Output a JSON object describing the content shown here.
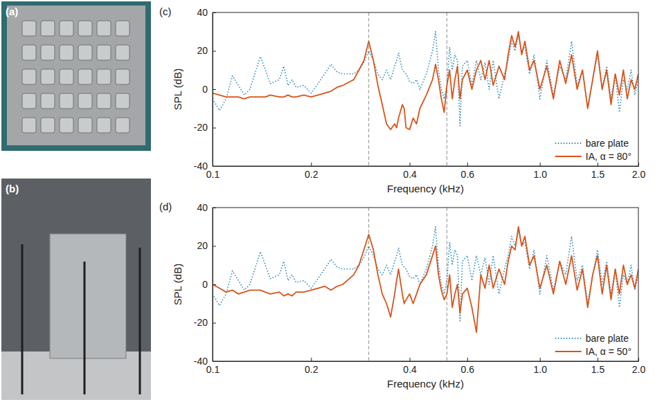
{
  "photos": [
    {
      "label": "(a)"
    },
    {
      "label": "(b)"
    }
  ],
  "chart_data": [
    {
      "type": "line",
      "panel_label": "(c)",
      "x_label": "Frequency (kHz)",
      "y_label": "SPL (dB)",
      "log": "x",
      "grid": false,
      "legend": "lower right",
      "xlim": [
        0.1,
        2.0
      ],
      "ylim": [
        -40,
        40
      ],
      "xticks": [
        0.1,
        0.2,
        0.4,
        0.6,
        {
          "value": 1,
          "label": "1.0"
        },
        1.5,
        {
          "value": 2,
          "label": "2.0"
        }
      ],
      "yticks": [
        -40,
        -20,
        0,
        20,
        40
      ],
      "reference_lines": [
        0.3,
        0.52
      ],
      "x": [
        0.1,
        0.105,
        0.11,
        0.115,
        0.12,
        0.125,
        0.13,
        0.14,
        0.145,
        0.15,
        0.16,
        0.165,
        0.17,
        0.175,
        0.18,
        0.19,
        0.2,
        0.21,
        0.22,
        0.23,
        0.24,
        0.25,
        0.27,
        0.28,
        0.29,
        0.3,
        0.31,
        0.32,
        0.33,
        0.34,
        0.35,
        0.36,
        0.365,
        0.37,
        0.38,
        0.385,
        0.39,
        0.4,
        0.41,
        0.42,
        0.43,
        0.45,
        0.47,
        0.48,
        0.49,
        0.5,
        0.51,
        0.52,
        0.53,
        0.54,
        0.55,
        0.56,
        0.57,
        0.58,
        0.6,
        0.62,
        0.64,
        0.66,
        0.68,
        0.7,
        0.72,
        0.75,
        0.78,
        0.8,
        0.82,
        0.84,
        0.86,
        0.88,
        0.9,
        0.93,
        0.96,
        1.0,
        1.05,
        1.1,
        1.15,
        1.2,
        1.25,
        1.3,
        1.35,
        1.4,
        1.45,
        1.5,
        1.55,
        1.6,
        1.65,
        1.7,
        1.75,
        1.8,
        1.85,
        1.9,
        1.95,
        2.0
      ],
      "series": [
        {
          "name": "bare plate",
          "color": "#2a8ab8",
          "line_style": "dotted",
          "values": [
            -5,
            -11,
            -5,
            7,
            2,
            -3,
            0,
            17,
            10,
            3,
            5,
            12,
            2,
            5,
            1,
            2,
            -2,
            3,
            8,
            13,
            9,
            8,
            8,
            10,
            14,
            20,
            15,
            8,
            5,
            10,
            5,
            12,
            15,
            19,
            10,
            9,
            8,
            4,
            3,
            5,
            0,
            8,
            20,
            30,
            10,
            0,
            -5,
            2,
            22,
            10,
            18,
            15,
            -19,
            12,
            15,
            2,
            15,
            5,
            14,
            0,
            15,
            -5,
            8,
            15,
            25,
            20,
            28,
            20,
            22,
            8,
            18,
            -5,
            15,
            -3,
            12,
            5,
            25,
            2,
            10,
            -10,
            5,
            18,
            0,
            12,
            -5,
            8,
            -12,
            5,
            0,
            10,
            -3,
            5
          ]
        },
        {
          "name": "IA, α = 80°",
          "color": "#d95319",
          "line_style": "solid",
          "values": [
            -2,
            -3,
            -4,
            -4,
            -4,
            -5,
            -4,
            -4,
            -4,
            -3,
            -4,
            -4,
            -3,
            -4,
            -4,
            -3,
            -4,
            -3,
            -2,
            -1,
            1,
            2,
            5,
            10,
            15,
            25,
            15,
            2,
            -8,
            -18,
            -21,
            -18,
            -20,
            -15,
            -8,
            -10,
            -20,
            -21,
            -15,
            -18,
            -10,
            -3,
            5,
            13,
            5,
            -5,
            -12,
            2,
            10,
            -5,
            5,
            12,
            -5,
            5,
            10,
            0,
            10,
            15,
            5,
            15,
            2,
            12,
            5,
            18,
            28,
            22,
            30,
            18,
            25,
            10,
            15,
            0,
            12,
            -5,
            15,
            3,
            18,
            0,
            10,
            -10,
            5,
            20,
            0,
            10,
            -8,
            8,
            -3,
            10,
            -5,
            5,
            0,
            8
          ]
        }
      ]
    },
    {
      "type": "line",
      "panel_label": "(d)",
      "x_label": "Frequency (kHz)",
      "y_label": "SPL (dB)",
      "log": "x",
      "grid": false,
      "legend": "lower right",
      "xlim": [
        0.1,
        2.0
      ],
      "ylim": [
        -40,
        40
      ],
      "xticks": [
        0.1,
        0.2,
        0.4,
        0.6,
        {
          "value": 1,
          "label": "1.0"
        },
        1.5,
        {
          "value": 2,
          "label": "2.0"
        }
      ],
      "yticks": [
        -40,
        -20,
        0,
        20,
        40
      ],
      "reference_lines": [
        0.3,
        0.52
      ],
      "x": [
        0.1,
        0.105,
        0.11,
        0.115,
        0.12,
        0.125,
        0.13,
        0.14,
        0.145,
        0.15,
        0.16,
        0.165,
        0.17,
        0.175,
        0.18,
        0.19,
        0.2,
        0.21,
        0.22,
        0.23,
        0.24,
        0.25,
        0.27,
        0.28,
        0.29,
        0.3,
        0.31,
        0.32,
        0.33,
        0.34,
        0.35,
        0.36,
        0.365,
        0.37,
        0.38,
        0.385,
        0.39,
        0.4,
        0.41,
        0.42,
        0.43,
        0.45,
        0.47,
        0.48,
        0.49,
        0.5,
        0.51,
        0.52,
        0.53,
        0.54,
        0.55,
        0.56,
        0.57,
        0.58,
        0.6,
        0.62,
        0.64,
        0.66,
        0.68,
        0.7,
        0.72,
        0.75,
        0.78,
        0.8,
        0.82,
        0.84,
        0.86,
        0.88,
        0.9,
        0.93,
        0.96,
        1.0,
        1.05,
        1.1,
        1.15,
        1.2,
        1.25,
        1.3,
        1.35,
        1.4,
        1.45,
        1.5,
        1.55,
        1.6,
        1.65,
        1.7,
        1.75,
        1.8,
        1.85,
        1.9,
        1.95,
        2.0
      ],
      "series": [
        {
          "name": "bare plate",
          "color": "#2a8ab8",
          "line_style": "dotted",
          "values": [
            -5,
            -11,
            -5,
            7,
            2,
            -3,
            0,
            17,
            10,
            3,
            5,
            12,
            2,
            5,
            1,
            2,
            -2,
            3,
            8,
            13,
            9,
            8,
            8,
            10,
            14,
            20,
            15,
            8,
            5,
            10,
            5,
            12,
            15,
            19,
            10,
            9,
            8,
            4,
            3,
            5,
            0,
            8,
            20,
            30,
            10,
            0,
            -5,
            2,
            22,
            10,
            18,
            15,
            -19,
            12,
            15,
            2,
            15,
            5,
            14,
            0,
            15,
            -5,
            8,
            15,
            25,
            20,
            28,
            20,
            22,
            8,
            18,
            -5,
            15,
            -3,
            12,
            5,
            25,
            2,
            10,
            -10,
            5,
            18,
            0,
            12,
            -5,
            8,
            -12,
            5,
            0,
            10,
            -3,
            5
          ]
        },
        {
          "name": "IA, α = 50°",
          "color": "#d95319",
          "line_style": "solid",
          "values": [
            0,
            -2,
            -4,
            -3,
            -5,
            -4,
            -3,
            -3,
            -4,
            -5,
            -4,
            -6,
            -5,
            -6,
            -4,
            -4,
            -3,
            -2,
            -1,
            -3,
            -1,
            0,
            5,
            10,
            18,
            26,
            18,
            5,
            -5,
            -10,
            -17,
            -5,
            2,
            8,
            -5,
            -10,
            -8,
            -5,
            -10,
            -5,
            0,
            5,
            15,
            20,
            5,
            -3,
            -8,
            -5,
            5,
            -12,
            -5,
            0,
            -15,
            -5,
            -2,
            -12,
            -25,
            5,
            -2,
            10,
            -2,
            8,
            0,
            12,
            20,
            18,
            30,
            20,
            25,
            10,
            15,
            -2,
            10,
            -5,
            12,
            0,
            15,
            -3,
            8,
            -12,
            5,
            15,
            -5,
            10,
            -8,
            8,
            -5,
            10,
            0,
            5,
            -2,
            8
          ]
        }
      ]
    }
  ]
}
